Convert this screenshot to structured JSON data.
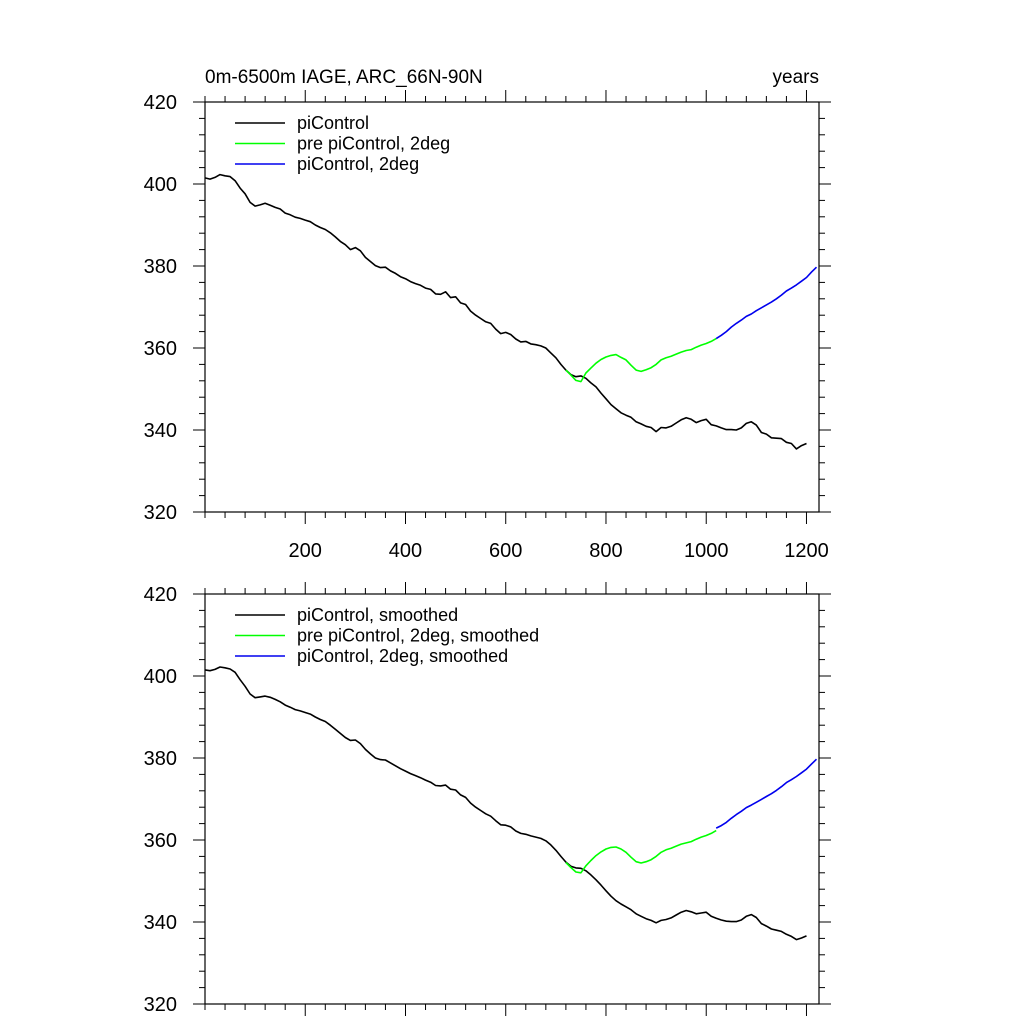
{
  "chart_data": [
    {
      "type": "line",
      "title_left": "0m-6500m IAGE, ARC_66N-90N",
      "title_right": "years",
      "xlim": [
        0,
        1225
      ],
      "ylim": [
        320,
        420
      ],
      "x_ticks": [
        200,
        400,
        600,
        800,
        1000,
        1200
      ],
      "x_tick_labels": [
        "200",
        "400",
        "600",
        "800",
        "1000",
        "1200"
      ],
      "y_ticks": [
        320,
        340,
        360,
        380,
        400,
        420
      ],
      "y_tick_labels": [
        "320",
        "340",
        "360",
        "380",
        "400",
        "420"
      ],
      "legend_position": "top-left",
      "series": [
        {
          "name": "piControl",
          "color": "#000000",
          "x": [
            0,
            10,
            20,
            30,
            40,
            50,
            60,
            70,
            80,
            90,
            100,
            110,
            120,
            130,
            140,
            150,
            160,
            170,
            180,
            190,
            200,
            210,
            220,
            230,
            240,
            250,
            260,
            270,
            280,
            290,
            300,
            310,
            320,
            330,
            340,
            350,
            360,
            370,
            380,
            390,
            400,
            410,
            420,
            430,
            440,
            450,
            460,
            470,
            480,
            490,
            500,
            510,
            520,
            530,
            540,
            550,
            560,
            570,
            580,
            590,
            600,
            610,
            620,
            630,
            640,
            650,
            660,
            670,
            680,
            690,
            700,
            710,
            720,
            730,
            740,
            750,
            760,
            770,
            780,
            790,
            800,
            810,
            820,
            830,
            840,
            850,
            860,
            870,
            880,
            890,
            900,
            910,
            920,
            930,
            940,
            950,
            960,
            970,
            980,
            990,
            1000,
            1010,
            1020,
            1030,
            1040,
            1050,
            1060,
            1070,
            1080,
            1090,
            1100,
            1110,
            1120,
            1130,
            1140,
            1150,
            1160,
            1170,
            1180,
            1190,
            1200
          ],
          "y": [
            401.5,
            401.2,
            401.6,
            402.3,
            402.0,
            401.8,
            400.8,
            399.0,
            397.6,
            395.5,
            394.6,
            394.9,
            395.3,
            394.8,
            394.3,
            393.9,
            392.9,
            392.5,
            391.9,
            391.6,
            391.2,
            390.8,
            390.0,
            389.4,
            388.9,
            388.1,
            387.1,
            386.0,
            385.2,
            384.0,
            384.5,
            383.7,
            382.1,
            381.1,
            380.1,
            379.6,
            379.7,
            378.8,
            378.2,
            377.4,
            376.9,
            376.2,
            375.7,
            375.3,
            374.6,
            374.3,
            373.2,
            373.1,
            373.7,
            372.3,
            372.5,
            371.0,
            370.6,
            369.0,
            368.0,
            367.2,
            366.4,
            366.0,
            364.6,
            363.5,
            363.8,
            363.3,
            362.2,
            361.5,
            361.6,
            361.0,
            360.8,
            360.5,
            360.0,
            358.8,
            357.6,
            356.0,
            354.6,
            353.5,
            353.0,
            353.2,
            352.6,
            351.5,
            350.5,
            349.0,
            347.6,
            346.2,
            345.2,
            344.2,
            343.6,
            343.1,
            342.0,
            341.5,
            340.9,
            340.6,
            339.6,
            340.6,
            340.5,
            340.9,
            341.7,
            342.5,
            343.0,
            342.6,
            341.8,
            342.3,
            342.6,
            341.3,
            341.0,
            340.5,
            340.1,
            340.1,
            340.0,
            340.5,
            341.6,
            342.0,
            341.2,
            339.4,
            339.0,
            338.1,
            338.0,
            337.9,
            337.0,
            336.7,
            335.4,
            336.2,
            336.7
          ]
        },
        {
          "name": "pre piControl, 2deg",
          "color": "#00ff00",
          "x": [
            720,
            730,
            740,
            750,
            760,
            770,
            780,
            790,
            800,
            810,
            820,
            830,
            840,
            850,
            860,
            870,
            880,
            890,
            900,
            910,
            920,
            930,
            940,
            950,
            960,
            970,
            980,
            990,
            1000,
            1010,
            1020
          ],
          "y": [
            354.6,
            353.4,
            352.1,
            351.8,
            353.9,
            355.1,
            356.3,
            357.2,
            357.8,
            358.2,
            358.4,
            357.7,
            357.1,
            355.8,
            354.6,
            354.3,
            354.7,
            355.2,
            356.0,
            357.1,
            357.6,
            358.0,
            358.5,
            359.0,
            359.4,
            359.6,
            360.2,
            360.7,
            361.1,
            361.6,
            362.3
          ]
        },
        {
          "name": "piControl, 2deg",
          "color": "#0000ee",
          "x": [
            1020,
            1030,
            1040,
            1050,
            1060,
            1070,
            1080,
            1090,
            1100,
            1110,
            1120,
            1130,
            1140,
            1150,
            1160,
            1170,
            1180,
            1190,
            1200,
            1210,
            1220
          ],
          "y": [
            362.3,
            363.1,
            364.0,
            365.1,
            366.0,
            366.8,
            367.7,
            368.3,
            369.1,
            369.8,
            370.5,
            371.2,
            372.0,
            372.9,
            373.9,
            374.6,
            375.4,
            376.3,
            377.2,
            378.5,
            379.7
          ]
        }
      ]
    },
    {
      "type": "line",
      "xlim": [
        0,
        1225
      ],
      "ylim": [
        320,
        420
      ],
      "x_ticks": [
        200,
        400,
        600,
        800,
        1000,
        1200
      ],
      "y_ticks": [
        320,
        340,
        360,
        380,
        400,
        420
      ],
      "y_tick_labels": [
        "320",
        "340",
        "360",
        "380",
        "400",
        "420"
      ],
      "legend_position": "top-left",
      "series": [
        {
          "name": "piControl, smoothed",
          "color": "#000000",
          "x": [
            0,
            10,
            20,
            30,
            40,
            50,
            60,
            70,
            80,
            90,
            100,
            110,
            120,
            130,
            140,
            150,
            160,
            170,
            180,
            190,
            200,
            210,
            220,
            230,
            240,
            250,
            260,
            270,
            280,
            290,
            300,
            310,
            320,
            330,
            340,
            350,
            360,
            370,
            380,
            390,
            400,
            410,
            420,
            430,
            440,
            450,
            460,
            470,
            480,
            490,
            500,
            510,
            520,
            530,
            540,
            550,
            560,
            570,
            580,
            590,
            600,
            610,
            620,
            630,
            640,
            650,
            660,
            670,
            680,
            690,
            700,
            710,
            720,
            730,
            740,
            750,
            760,
            770,
            780,
            790,
            800,
            810,
            820,
            830,
            840,
            850,
            860,
            870,
            880,
            890,
            900,
            910,
            920,
            930,
            940,
            950,
            960,
            970,
            980,
            990,
            1000,
            1010,
            1020,
            1030,
            1040,
            1050,
            1060,
            1070,
            1080,
            1090,
            1100,
            1110,
            1120,
            1130,
            1140,
            1150,
            1160,
            1170,
            1180,
            1190,
            1200
          ],
          "y": [
            401.5,
            401.3,
            401.6,
            402.2,
            402.0,
            401.7,
            400.9,
            399.1,
            397.5,
            395.6,
            394.7,
            394.9,
            395.1,
            394.8,
            394.3,
            393.7,
            392.9,
            392.4,
            391.8,
            391.5,
            391.1,
            390.7,
            390.0,
            389.4,
            388.9,
            388.0,
            387.0,
            386.0,
            385.0,
            384.3,
            384.4,
            383.5,
            382.1,
            381.0,
            380.0,
            379.6,
            379.5,
            378.8,
            378.1,
            377.4,
            376.8,
            376.2,
            375.7,
            375.2,
            374.6,
            374.1,
            373.3,
            373.2,
            373.4,
            372.4,
            372.2,
            371.0,
            370.4,
            369.0,
            368.0,
            367.2,
            366.4,
            365.8,
            364.7,
            363.7,
            363.6,
            363.2,
            362.2,
            361.6,
            361.4,
            361.0,
            360.7,
            360.4,
            359.8,
            358.8,
            357.5,
            356.0,
            354.6,
            353.6,
            353.2,
            353.1,
            352.5,
            351.5,
            350.3,
            349.0,
            347.6,
            346.3,
            345.2,
            344.4,
            343.7,
            343.0,
            342.0,
            341.4,
            340.8,
            340.4,
            339.8,
            340.4,
            340.6,
            341.0,
            341.7,
            342.4,
            342.8,
            342.5,
            342.0,
            342.2,
            342.4,
            341.4,
            340.9,
            340.5,
            340.2,
            340.1,
            340.1,
            340.5,
            341.4,
            341.8,
            341.1,
            339.6,
            339.0,
            338.3,
            338.0,
            337.7,
            337.0,
            336.5,
            335.7,
            336.1,
            336.6
          ]
        },
        {
          "name": "pre piControl, 2deg, smoothed",
          "color": "#00ff00",
          "x": [
            720,
            730,
            740,
            750,
            760,
            770,
            780,
            790,
            800,
            810,
            820,
            830,
            840,
            850,
            860,
            870,
            880,
            890,
            900,
            910,
            920,
            930,
            940,
            950,
            960,
            970,
            980,
            990,
            1000,
            1010,
            1020
          ],
          "y": [
            354.5,
            353.3,
            352.2,
            352.0,
            353.7,
            355.0,
            356.2,
            357.1,
            357.8,
            358.2,
            358.3,
            357.8,
            357.0,
            355.8,
            354.7,
            354.4,
            354.7,
            355.2,
            356.0,
            357.0,
            357.6,
            358.0,
            358.5,
            359.0,
            359.3,
            359.6,
            360.2,
            360.7,
            361.1,
            361.6,
            362.3
          ]
        },
        {
          "name": "piControl, 2deg, smoothed",
          "color": "#0000ee",
          "x": [
            1020,
            1030,
            1040,
            1050,
            1060,
            1070,
            1080,
            1090,
            1100,
            1110,
            1120,
            1130,
            1140,
            1150,
            1160,
            1170,
            1180,
            1190,
            1200,
            1210,
            1220
          ],
          "y": [
            362.9,
            363.5,
            364.3,
            365.3,
            366.2,
            367.0,
            367.9,
            368.5,
            369.2,
            369.9,
            370.6,
            371.3,
            372.1,
            373.0,
            374.0,
            374.7,
            375.5,
            376.4,
            377.3,
            378.5,
            379.7
          ]
        }
      ]
    }
  ]
}
